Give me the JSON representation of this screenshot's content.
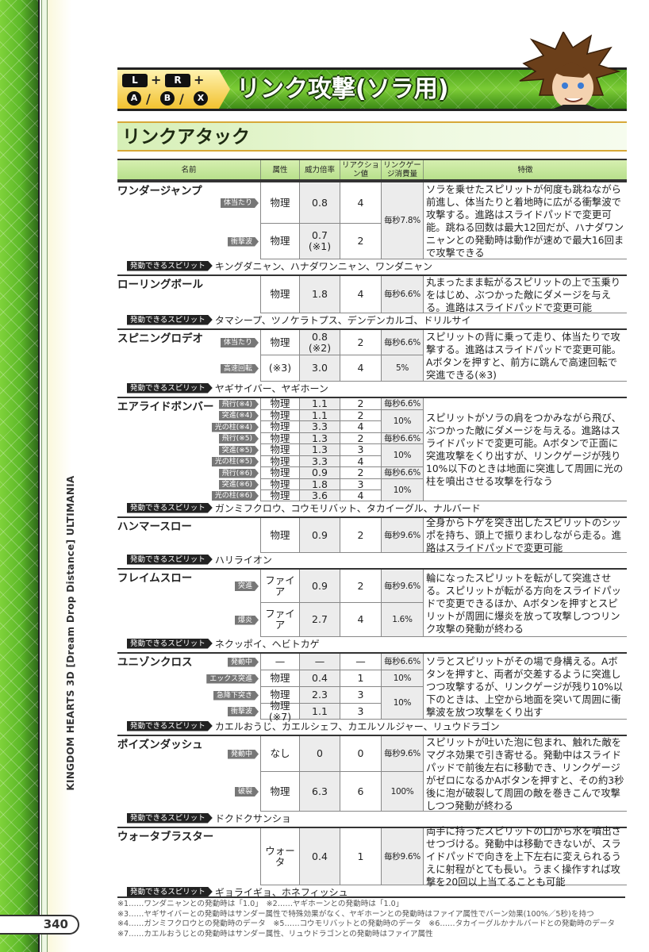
{
  "side": {
    "vertical_text": "KINGDOM HEARTS 3D [Dream Drop Distance] ULTIMANIA",
    "page_number": "340"
  },
  "header": {
    "buttons": {
      "l": "L",
      "r": "R",
      "plus": "+",
      "slash": "/",
      "a": "A",
      "b": "B",
      "x": "X"
    },
    "title": "リンク攻撃(ソラ用)",
    "section_title": "リンクアタック"
  },
  "colors": {
    "banner_green": "#5cb828",
    "gold": "#f2c230",
    "header_green": "#c8e8a0",
    "shaded_cell": "#ececec"
  },
  "table": {
    "columns": [
      "名前",
      "属性",
      "威力倍率",
      "リアクション値",
      "リンクゲージ消費量",
      "特徴"
    ],
    "spirit_label": "発動できるスピリット",
    "attacks": [
      {
        "name": "ワンダージャンプ",
        "rows": [
          {
            "tag": "体当たり",
            "attr": "物理",
            "power": "0.8",
            "reaction": "4"
          },
          {
            "tag": "衝撃波",
            "attr": "物理",
            "power": "0.7\n(※1)",
            "reaction": "2"
          }
        ],
        "gauges": [
          {
            "value": "毎秒7.8%",
            "span": 2
          }
        ],
        "feature": "ソラを乗せたスピリットが何度も跳ねながら前進し、体当たりと着地時に広がる衝撃波で攻撃する。進路はスライドパッドで変更可能。跳ねる回数は最大12回だが、ハナダワンニャンとの発動時は動作が速めで最大16回まで攻撃できる",
        "spirits": "キングダニャン、ハナダワンニャン、ワンダニャン"
      },
      {
        "name": "ローリングボール",
        "rows": [
          {
            "tag": "",
            "attr": "物理",
            "power": "1.8",
            "reaction": "4"
          }
        ],
        "gauges": [
          {
            "value": "毎秒6.6%",
            "span": 1
          }
        ],
        "feature": "丸まったまま転がるスピリットの上で玉乗りをはじめ、ぶつかった敵にダメージを与える。進路はスライドパッドで変更可能",
        "spirits": "タマシープ、ツノケラトプス、デンデンカルゴ、ドリルサイ"
      },
      {
        "name": "スピニングロデオ",
        "rows": [
          {
            "tag": "体当たり",
            "attr": "物理",
            "power": "0.8\n(※2)",
            "reaction": "2"
          },
          {
            "tag": "高速回転",
            "attr": "(※3)",
            "power": "3.0",
            "reaction": "4"
          }
        ],
        "gauges": [
          {
            "value": "毎秒6.6%",
            "span": 1
          },
          {
            "value": "5%",
            "span": 1
          }
        ],
        "feature": "スピリットの背に乗って走り、体当たりで攻撃する。進路はスライドパッドで変更可能。Aボタンを押すと、前方に跳んで高速回転で突進できる(※3)",
        "spirits": "ヤギサイバー、ヤギホーン"
      },
      {
        "name": "エアライドボンバー",
        "rows": [
          {
            "tag": "飛行(※4)",
            "attr": "物理",
            "power": "1.1",
            "reaction": "2"
          },
          {
            "tag": "突進(※4)",
            "attr": "物理",
            "power": "1.1",
            "reaction": "2"
          },
          {
            "tag": "光の柱(※4)",
            "attr": "物理",
            "power": "3.3",
            "reaction": "4"
          },
          {
            "tag": "飛行(※5)",
            "attr": "物理",
            "power": "1.3",
            "reaction": "2"
          },
          {
            "tag": "突進(※5)",
            "attr": "物理",
            "power": "1.3",
            "reaction": "3"
          },
          {
            "tag": "光の柱(※5)",
            "attr": "物理",
            "power": "3.3",
            "reaction": "4"
          },
          {
            "tag": "飛行(※6)",
            "attr": "物理",
            "power": "0.9",
            "reaction": "2"
          },
          {
            "tag": "突進(※6)",
            "attr": "物理",
            "power": "1.8",
            "reaction": "3"
          },
          {
            "tag": "光の柱(※6)",
            "attr": "物理",
            "power": "3.6",
            "reaction": "4"
          }
        ],
        "gauges": [
          {
            "value": "毎秒6.6%",
            "span": 1
          },
          {
            "value": "10%",
            "span": 2
          },
          {
            "value": "毎秒6.6%",
            "span": 1
          },
          {
            "value": "10%",
            "span": 2
          },
          {
            "value": "毎秒6.6%",
            "span": 1
          },
          {
            "value": "10%",
            "span": 2
          }
        ],
        "feature": "スピリットがソラの肩をつかみながら飛び、ぶつかった敵にダメージを与える。進路はスライドパッドで変更可能。Aボタンで正面に突進攻撃をくり出すが、リンクゲージが残り10%以下のときは地面に突進して周囲に光の柱を噴出させる攻撃を行なう",
        "spirits": "ガンミフクロウ、コウモリバット、タカイーグル、ナルバード"
      },
      {
        "name": "ハンマースロー",
        "rows": [
          {
            "tag": "",
            "attr": "物理",
            "power": "0.9",
            "reaction": "2"
          }
        ],
        "gauges": [
          {
            "value": "毎秒9.6%",
            "span": 1
          }
        ],
        "feature": "全身からトゲを突き出したスピリットのシッポを持ち、頭上で振りまわしながら走る。進路はスライドパッドで変更可能",
        "spirits": "ハリライオン"
      },
      {
        "name": "フレイムスロー",
        "rows": [
          {
            "tag": "突進",
            "attr": "ファイア",
            "power": "0.9",
            "reaction": "2"
          },
          {
            "tag": "爆炎",
            "attr": "ファイア",
            "power": "2.7",
            "reaction": "4"
          }
        ],
        "gauges": [
          {
            "value": "毎秒9.6%",
            "span": 1
          },
          {
            "value": "1.6%",
            "span": 1
          }
        ],
        "feature": "輪になったスピリットを転がして突進させる。スピリットが転がる方向をスライドパッドで変更できるほか、Aボタンを押すとスピリットが周囲に爆炎を放って攻撃しつつリンク攻撃の発動が終わる",
        "spirits": "ネクッポイ、ヘビトカゲ"
      },
      {
        "name": "ユニゾンクロス",
        "rows": [
          {
            "tag": "発動中",
            "attr": "—",
            "power": "—",
            "reaction": "—"
          },
          {
            "tag": "エックス突進",
            "attr": "物理",
            "power": "0.4",
            "reaction": "1"
          },
          {
            "tag": "急降下突き",
            "attr": "物理",
            "power": "2.3",
            "reaction": "3"
          },
          {
            "tag": "衝撃波",
            "attr": "物理(※7)",
            "power": "1.1",
            "reaction": "3"
          }
        ],
        "gauges": [
          {
            "value": "毎秒6.6%",
            "span": 1
          },
          {
            "value": "10%",
            "span": 1
          },
          {
            "value": "10%",
            "span": 2
          }
        ],
        "feature": "ソラとスピリットがその場で身構える。Aボタンを押すと、両者が交差するように突進しつつ攻撃するが、リンクゲージが残り10%以下のときは、上空から地面を突いて周囲に衝撃波を放つ攻撃をくり出す",
        "spirits": "カエルおうじ、カエルシェフ、カエルソルジャー、リュウドラゴン"
      },
      {
        "name": "ポイズンダッシュ",
        "rows": [
          {
            "tag": "発動中",
            "attr": "なし",
            "power": "0",
            "reaction": "0"
          },
          {
            "tag": "破裂",
            "attr": "物理",
            "power": "6.3",
            "reaction": "6"
          }
        ],
        "gauges": [
          {
            "value": "毎秒9.6%",
            "span": 1
          },
          {
            "value": "100%",
            "span": 1
          }
        ],
        "feature": "スピリットが吐いた泡に包まれ、触れた敵をマグネ効果で引き寄せる。発動中はスライドパッドで前後左右に移動でき、リンクゲージがゼロになるかAボタンを押すと、その約3秒後に泡が破裂して周囲の敵を巻きこんで攻撃しつつ発動が終わる",
        "spirits": "ドクドクサンショ"
      },
      {
        "name": "ウォータブラスター",
        "rows": [
          {
            "tag": "",
            "attr": "ウォータ",
            "power": "0.4",
            "reaction": "1"
          }
        ],
        "gauges": [
          {
            "value": "毎秒9.6%",
            "span": 1
          }
        ],
        "feature": "両手に持ったスピリットの口から水を噴出させつづける。発動中は移動できないが、スライドパッドで向きを上下左右に変えられるうえに射程がとても長い。うまく操作すれば攻撃を20回以上当てることも可能",
        "spirits": "ギョライギョ、ホネフィッシュ"
      }
    ]
  },
  "footnotes": [
    "※1……ワンダニャンとの発動時は「1.0」　※2……ヤギホーンとの発動時は「1.0」",
    "※3……ヤギサイバーとの発動時はサンダー属性で特殊効果がなく、ヤギホーンとの発動時はファイア属性でバーン効果(100%／5秒)を持つ",
    "※4……ガンミフクロウとの発動時のデータ　※5……コウモリバットとの発動時のデータ　※6……タカイーグルかナルバードとの発動時のデータ",
    "※7……カエルおうじとの発動時はサンダー属性、リュウドラゴンとの発動時はファイア属性"
  ]
}
